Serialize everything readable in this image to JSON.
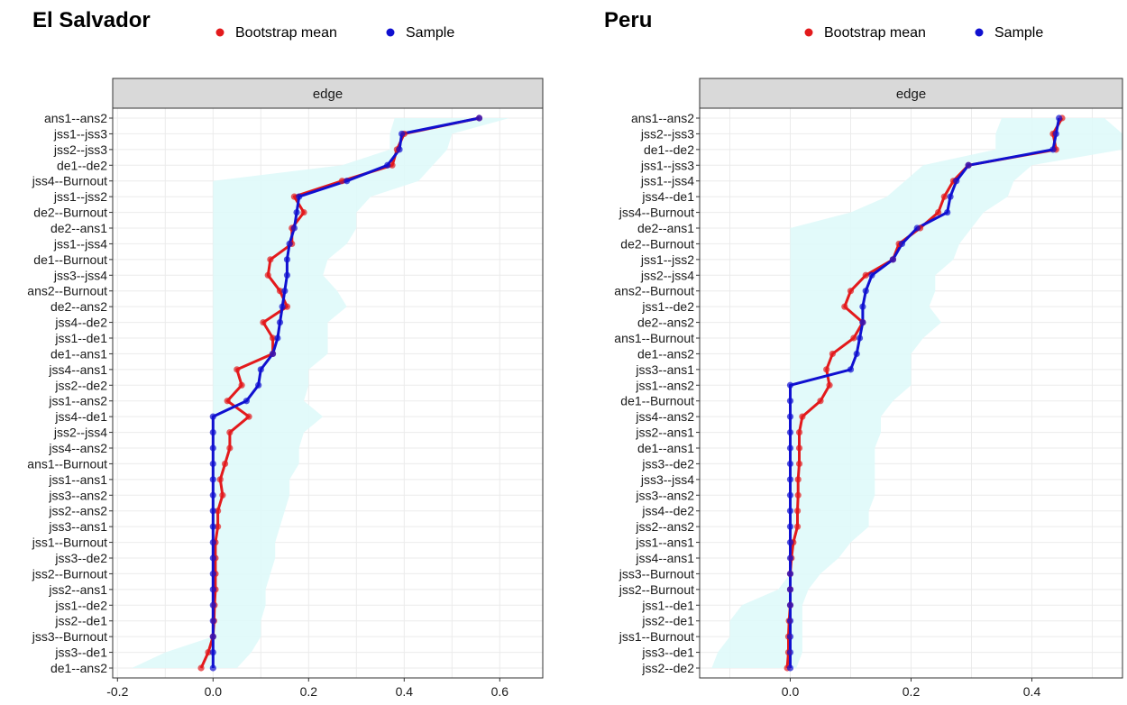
{
  "colors": {
    "bootstrap": "#e31a1c",
    "sample": "#1010d0",
    "band": "#dffafa",
    "strip_fill": "#d9d9d9",
    "grid": "#ebebeb"
  },
  "legend": {
    "bootstrap_label": "Bootstrap mean",
    "sample_label": "Sample"
  },
  "chart_data": [
    {
      "type": "line",
      "title": "El Salvador",
      "facet_label": "edge",
      "xlim": [
        -0.21,
        0.69
      ],
      "x_ticks": [
        -0.2,
        0.0,
        0.2,
        0.4,
        0.6
      ],
      "x_tick_labels": [
        "-0.2",
        "0.0",
        "0.2",
        "0.4",
        "0.6"
      ],
      "legend_position": "top",
      "categories": [
        "ans1--ans2",
        "jss1--jss3",
        "jss2--jss3",
        "de1--de2",
        "jss4--Burnout",
        "jss1--jss2",
        "de2--Burnout",
        "de2--ans1",
        "jss1--jss4",
        "de1--Burnout",
        "jss3--jss4",
        "ans2--Burnout",
        "de2--ans2",
        "jss4--de2",
        "jss1--de1",
        "de1--ans1",
        "jss4--ans1",
        "jss2--de2",
        "jss1--ans2",
        "jss4--de1",
        "jss2--jss4",
        "jss4--ans2",
        "ans1--Burnout",
        "jss1--ans1",
        "jss3--ans2",
        "jss2--ans2",
        "jss3--ans1",
        "jss1--Burnout",
        "jss3--de2",
        "jss2--Burnout",
        "jss2--ans1",
        "jss1--de2",
        "jss2--de1",
        "jss3--Burnout",
        "jss3--de1",
        "de1--ans2"
      ],
      "series": [
        {
          "name": "Bootstrap mean",
          "values": [
            0.557,
            0.4,
            0.385,
            0.375,
            0.27,
            0.17,
            0.19,
            0.165,
            0.165,
            0.12,
            0.115,
            0.14,
            0.155,
            0.105,
            0.125,
            0.125,
            0.05,
            0.06,
            0.03,
            0.075,
            0.035,
            0.035,
            0.025,
            0.015,
            0.02,
            0.01,
            0.01,
            0.005,
            0.005,
            0.005,
            0.005,
            0.003,
            0.002,
            0.0,
            -0.01,
            -0.025
          ]
        },
        {
          "name": "Sample",
          "values": [
            0.557,
            0.395,
            0.39,
            0.365,
            0.28,
            0.18,
            0.175,
            0.17,
            0.16,
            0.155,
            0.155,
            0.15,
            0.145,
            0.14,
            0.135,
            0.125,
            0.1,
            0.095,
            0.07,
            0.0,
            0.0,
            0.0,
            0.0,
            0.0,
            0.0,
            0.0,
            0.0,
            0.0,
            0.0,
            0.0,
            0.0,
            0.0,
            0.0,
            0.0,
            0.0,
            0.0
          ]
        }
      ],
      "band": {
        "lower": [
          0.38,
          0.37,
          0.37,
          0.27,
          0.0,
          0.0,
          0.0,
          0.0,
          0.0,
          0.0,
          0.0,
          0.0,
          0.0,
          0.0,
          0.0,
          0.0,
          0.0,
          0.0,
          0.0,
          0.0,
          0.0,
          0.0,
          0.0,
          0.0,
          0.0,
          0.0,
          0.0,
          0.0,
          0.0,
          0.0,
          0.0,
          0.0,
          0.0,
          0.0,
          -0.1,
          -0.17
        ],
        "upper": [
          0.62,
          0.5,
          0.49,
          0.46,
          0.43,
          0.33,
          0.3,
          0.3,
          0.28,
          0.24,
          0.23,
          0.26,
          0.28,
          0.24,
          0.24,
          0.24,
          0.2,
          0.2,
          0.19,
          0.23,
          0.19,
          0.18,
          0.18,
          0.16,
          0.16,
          0.15,
          0.14,
          0.13,
          0.13,
          0.12,
          0.11,
          0.11,
          0.1,
          0.1,
          0.08,
          0.05
        ]
      }
    },
    {
      "type": "line",
      "title": "Peru",
      "facet_label": "edge",
      "xlim": [
        -0.15,
        0.55
      ],
      "x_ticks": [
        0.0,
        0.2,
        0.4
      ],
      "x_tick_labels": [
        "0.0",
        "0.2",
        "0.4"
      ],
      "legend_position": "top",
      "categories": [
        "ans1--ans2",
        "jss2--jss3",
        "de1--de2",
        "jss1--jss3",
        "jss1--jss4",
        "jss4--de1",
        "jss4--Burnout",
        "de2--ans1",
        "de2--Burnout",
        "jss1--jss2",
        "jss2--jss4",
        "ans2--Burnout",
        "jss1--de2",
        "de2--ans2",
        "ans1--Burnout",
        "de1--ans2",
        "jss3--ans1",
        "jss1--ans2",
        "de1--Burnout",
        "jss4--ans2",
        "jss2--ans1",
        "de1--ans1",
        "jss3--de2",
        "jss3--jss4",
        "jss3--ans2",
        "jss4--de2",
        "jss2--ans2",
        "jss1--ans1",
        "jss4--ans1",
        "jss3--Burnout",
        "jss2--Burnout",
        "jss1--de1",
        "jss2--de1",
        "jss1--Burnout",
        "jss3--de1",
        "jss2--de2"
      ],
      "series": [
        {
          "name": "Bootstrap mean",
          "values": [
            0.45,
            0.435,
            0.44,
            0.295,
            0.27,
            0.255,
            0.245,
            0.215,
            0.18,
            0.17,
            0.125,
            0.1,
            0.09,
            0.12,
            0.105,
            0.07,
            0.06,
            0.065,
            0.05,
            0.02,
            0.015,
            0.015,
            0.015,
            0.013,
            0.013,
            0.012,
            0.012,
            0.005,
            0.002,
            0.0,
            0.0,
            0.0,
            -0.002,
            -0.003,
            -0.003,
            -0.005
          ]
        },
        {
          "name": "Sample",
          "values": [
            0.445,
            0.44,
            0.435,
            0.295,
            0.275,
            0.265,
            0.26,
            0.21,
            0.185,
            0.17,
            0.135,
            0.125,
            0.12,
            0.12,
            0.115,
            0.11,
            0.1,
            0.0,
            0.0,
            0.0,
            0.0,
            0.0,
            0.0,
            0.0,
            0.0,
            0.0,
            0.0,
            0.0,
            0.0,
            0.0,
            0.0,
            0.0,
            0.0,
            0.0,
            0.0,
            0.0
          ]
        }
      ],
      "band": {
        "lower": [
          0.35,
          0.34,
          0.34,
          0.22,
          0.19,
          0.16,
          0.1,
          0.0,
          0.0,
          0.0,
          0.0,
          0.0,
          0.0,
          0.0,
          0.0,
          0.0,
          0.0,
          0.0,
          0.0,
          0.0,
          0.0,
          0.0,
          0.0,
          0.0,
          0.0,
          0.0,
          0.0,
          0.0,
          0.0,
          0.0,
          -0.02,
          -0.08,
          -0.1,
          -0.1,
          -0.12,
          -0.13
        ],
        "upper": [
          0.52,
          0.55,
          0.55,
          0.4,
          0.37,
          0.36,
          0.32,
          0.3,
          0.28,
          0.27,
          0.24,
          0.24,
          0.23,
          0.25,
          0.22,
          0.2,
          0.2,
          0.2,
          0.17,
          0.15,
          0.15,
          0.14,
          0.14,
          0.14,
          0.14,
          0.13,
          0.13,
          0.1,
          0.08,
          0.05,
          0.03,
          0.02,
          0.02,
          0.02,
          0.02,
          0.01
        ]
      }
    }
  ]
}
